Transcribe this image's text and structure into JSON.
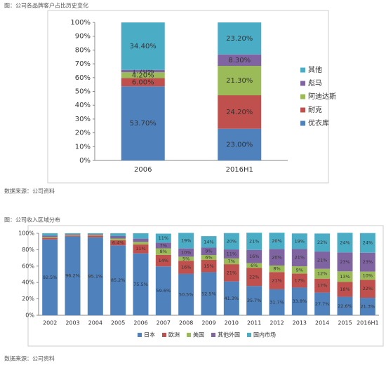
{
  "chart_data": [
    {
      "type": "stacked-bar",
      "title": "图：公司各品牌客户占比历史变化",
      "source": "数据来源：公司资料",
      "categories": [
        "2006",
        "2016H1"
      ],
      "series": [
        {
          "name": "优衣库",
          "color": "#4f81bd",
          "values": [
            53.7,
            23.0
          ],
          "value_labels": [
            "53.70%",
            "23.00%"
          ]
        },
        {
          "name": "耐克",
          "color": "#c0504d",
          "values": [
            6.0,
            24.2
          ],
          "value_labels": [
            "6.00%",
            "24.20%"
          ]
        },
        {
          "name": "阿迪达斯",
          "color": "#9bbb59",
          "values": [
            4.2,
            21.3
          ],
          "value_labels": [
            "4.20%",
            "21.30%"
          ]
        },
        {
          "name": "彪马",
          "color": "#8064a2",
          "values": [
            1.7,
            8.3
          ],
          "value_labels": [
            "1.70%",
            "8.30%"
          ]
        },
        {
          "name": "其他",
          "color": "#4bacc6",
          "values": [
            34.4,
            23.2
          ],
          "value_labels": [
            "34.40%",
            "23.20%"
          ]
        }
      ],
      "ylim": [
        0,
        100
      ],
      "yticks": [
        {
          "value": 0,
          "label": "0%"
        },
        {
          "value": 10,
          "label": "10%"
        },
        {
          "value": 20,
          "label": "20%"
        },
        {
          "value": 30,
          "label": "30%"
        },
        {
          "value": 40,
          "label": "40%"
        },
        {
          "value": 50,
          "label": "50%"
        },
        {
          "value": 60,
          "label": "60%"
        },
        {
          "value": 70,
          "label": "70%"
        },
        {
          "value": 80,
          "label": "80%"
        },
        {
          "value": 90,
          "label": "90%"
        },
        {
          "value": 100,
          "label": "100%"
        }
      ],
      "grid": false,
      "legend": "right"
    },
    {
      "type": "stacked-bar",
      "title": "图：公司收入区域分布",
      "source": "数据来源：公司资料",
      "categories": [
        "2002",
        "2003",
        "2004",
        "2005",
        "2006",
        "2007",
        "2008",
        "2009",
        "2010",
        "2011",
        "2012",
        "2013",
        "2014",
        "2015",
        "2016H1"
      ],
      "series": [
        {
          "name": "日本",
          "color": "#4f81bd",
          "values": [
            92.5,
            96.2,
            95.1,
            85.2,
            75.5,
            59.6,
            50.5,
            52.5,
            41.3,
            35.7,
            31.7,
            33.8,
            27.7,
            22.6,
            21.3
          ],
          "value_labels": [
            "92.5%",
            "96.2%",
            "95.1%",
            "85.2%",
            "75.5%",
            "59.6%",
            "50.5%",
            "52.5%",
            "41.3%",
            "35.7%",
            "31.7%",
            "33.8%",
            "27.7%",
            "22.6%",
            "21.3%"
          ]
        },
        {
          "name": "欧洲",
          "color": "#c0504d",
          "values": [
            2,
            1,
            2,
            6.4,
            11,
            14,
            16,
            15,
            21,
            22,
            21,
            17,
            17,
            18,
            22
          ],
          "value_labels": [
            null,
            null,
            null,
            "6.4%",
            "11%",
            "14%",
            "16%",
            "15%",
            "21%",
            "22%",
            "21%",
            "17%",
            "17%",
            "18%",
            "22%"
          ]
        },
        {
          "name": "美国",
          "color": "#9bbb59",
          "values": [
            1,
            0.8,
            0.9,
            2,
            3,
            8,
            5,
            6,
            7,
            6,
            8,
            9,
            12,
            13,
            10
          ],
          "value_labels": [
            null,
            null,
            null,
            null,
            null,
            "8%",
            "5%",
            "6%",
            "7%",
            "6%",
            "8%",
            "9%",
            "12%",
            "13%",
            "10%"
          ]
        },
        {
          "name": "其他外国",
          "color": "#8064a2",
          "values": [
            1.5,
            1,
            1,
            3,
            4,
            7,
            10,
            9,
            11,
            16,
            20,
            21,
            21,
            23,
            23
          ],
          "value_labels": [
            null,
            null,
            null,
            null,
            null,
            "7%",
            "10%",
            "9%",
            "11%",
            "16%",
            "20%",
            "21%",
            "21%",
            "23%",
            "23%"
          ]
        },
        {
          "name": "国内市场",
          "color": "#4bacc6",
          "values": [
            3,
            1,
            1,
            3.4,
            6.5,
            11,
            19,
            14,
            20,
            21,
            20,
            19,
            22,
            24,
            24
          ],
          "value_labels": [
            null,
            null,
            null,
            null,
            null,
            "11%",
            "19%",
            "14%",
            "20%",
            "21%",
            "20%",
            "19%",
            "22%",
            "24%",
            "24%"
          ]
        }
      ],
      "ylim": [
        0,
        100
      ],
      "yticks": [
        {
          "value": 0,
          "label": "0%"
        },
        {
          "value": 20,
          "label": "20%"
        },
        {
          "value": 40,
          "label": "40%"
        },
        {
          "value": 60,
          "label": "60%"
        },
        {
          "value": 80,
          "label": "80%"
        },
        {
          "value": 100,
          "label": "100%"
        }
      ],
      "grid": false,
      "legend": "bottom"
    }
  ]
}
